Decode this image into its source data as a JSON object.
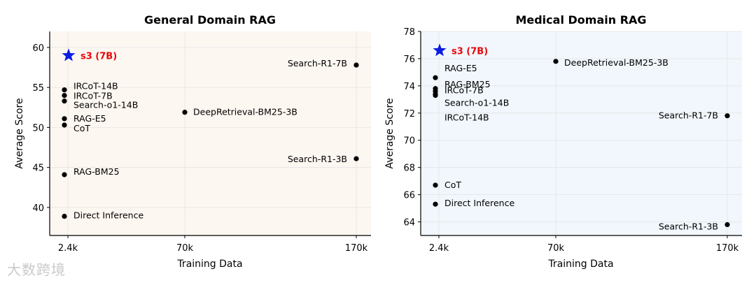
{
  "watermark": "大数跨境",
  "chart_data": [
    {
      "type": "scatter",
      "title": "General Domain RAG",
      "xlabel": "Training Data",
      "ylabel": "Average Score",
      "x_ticks": [
        "2.4k",
        "70k",
        "170k"
      ],
      "y_ticks": [
        40,
        45,
        50,
        55,
        60
      ],
      "ylim": [
        36.5,
        62
      ],
      "grid": true,
      "background_color": "#fdf7f1",
      "highlight": {
        "label": "s3 (7B)",
        "x": "2.4k",
        "y": 59.0,
        "marker": "star",
        "color": "#0b1de0",
        "label_color": "#e8070b"
      },
      "points": [
        {
          "label": "IRCoT-14B",
          "x": "2.4k",
          "y": 54.7
        },
        {
          "label": "IRCoT-7B",
          "x": "2.4k",
          "y": 54.0
        },
        {
          "label": "Search-o1-14B",
          "x": "2.4k",
          "y": 53.3
        },
        {
          "label": "RAG-E5",
          "x": "2.4k",
          "y": 51.1
        },
        {
          "label": "CoT",
          "x": "2.4k",
          "y": 50.3
        },
        {
          "label": "RAG-BM25",
          "x": "2.4k",
          "y": 44.1
        },
        {
          "label": "Direct Inference",
          "x": "2.4k",
          "y": 38.9
        },
        {
          "label": "DeepRetrieval-BM25-3B",
          "x": "70k",
          "y": 51.9
        },
        {
          "label": "Search-R1-7B",
          "x": "170k",
          "y": 57.8
        },
        {
          "label": "Search-R1-3B",
          "x": "170k",
          "y": 46.1
        }
      ]
    },
    {
      "type": "scatter",
      "title": "Medical Domain RAG",
      "xlabel": "Training Data",
      "ylabel": "Average Score",
      "x_ticks": [
        "2.4k",
        "70k",
        "170k"
      ],
      "y_ticks": [
        64,
        66,
        68,
        70,
        72,
        74,
        76,
        78
      ],
      "ylim": [
        63,
        78
      ],
      "grid": true,
      "background_color": "#f1f7fc",
      "highlight": {
        "label": "s3 (7B)",
        "x": "2.4k",
        "y": 76.6,
        "marker": "star",
        "color": "#0b1de0",
        "label_color": "#e8070b"
      },
      "points": [
        {
          "label": "RAG-E5",
          "x": "2.4k",
          "y": 74.6
        },
        {
          "label": "RAG-BM25",
          "x": "2.4k",
          "y": 73.8
        },
        {
          "label": "IRCoT-7B",
          "x": "2.4k",
          "y": 73.6
        },
        {
          "label": "Search-o1-14B",
          "x": "2.4k",
          "y": 73.4
        },
        {
          "label": "IRCoT-14B",
          "x": "2.4k",
          "y": 73.3
        },
        {
          "label": "CoT",
          "x": "2.4k",
          "y": 66.7
        },
        {
          "label": "Direct Inference",
          "x": "2.4k",
          "y": 65.3
        },
        {
          "label": "DeepRetrieval-BM25-3B",
          "x": "70k",
          "y": 75.8
        },
        {
          "label": "Search-R1-7B",
          "x": "170k",
          "y": 71.8
        },
        {
          "label": "Search-R1-3B",
          "x": "170k",
          "y": 63.8
        }
      ]
    }
  ]
}
